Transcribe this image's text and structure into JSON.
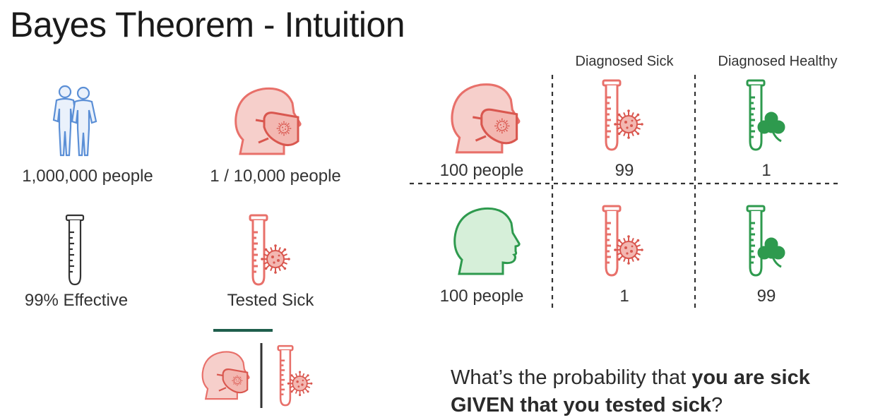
{
  "title": "Bayes Theorem - Intuition",
  "left_panel": {
    "population_label": "1,000,000 people",
    "sick_rate_label": "1 / 10,000 people",
    "test_accuracy_label": "99% Effective",
    "tested_sick_label": "Tested Sick"
  },
  "table": {
    "col_headers": [
      "Diagnosed Sick",
      "Diagnosed Healthy"
    ],
    "rows": [
      {
        "group_label": "100 people",
        "diagnosed_sick": "99",
        "diagnosed_healthy": "1",
        "head_icon": "sick-head-icon"
      },
      {
        "group_label": "100 people",
        "diagnosed_sick": "1",
        "diagnosed_healthy": "99",
        "head_icon": "healthy-head-icon"
      }
    ]
  },
  "question": {
    "part1": "What’s the probability that ",
    "bold1": "you are sick",
    "bold2": "GIVEN that you tested sick",
    "part2": "?"
  },
  "colors": {
    "sick": "#e8706a",
    "sick_fill": "#f6cfcb",
    "healthy": "#2e9a4e",
    "healthy_fill": "#d6efd9",
    "people": "#5b8fd6",
    "tube": "#333333",
    "divider": "#1f5e4c"
  }
}
